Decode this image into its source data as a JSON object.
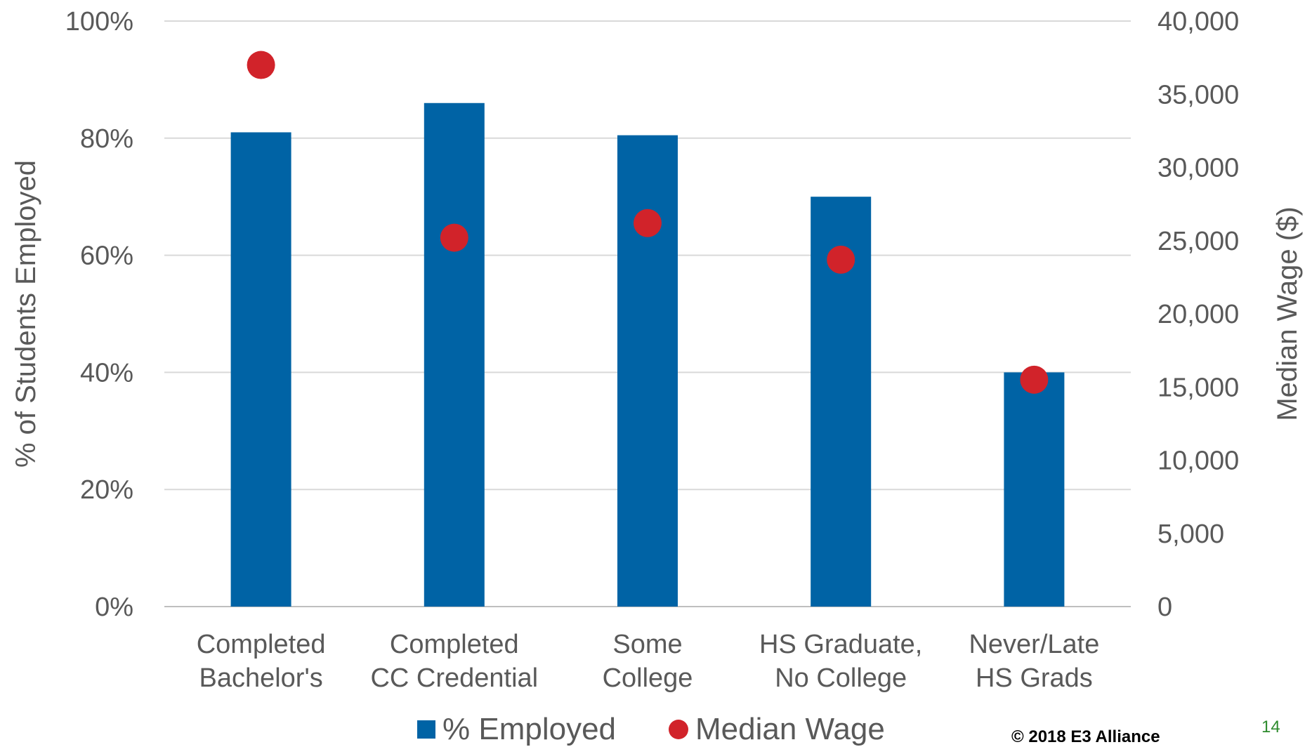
{
  "chart_data": {
    "type": "bar",
    "categories": [
      [
        "Completed",
        "Bachelor's"
      ],
      [
        "Completed",
        "CC Credential"
      ],
      [
        "Some",
        "College"
      ],
      [
        "HS Graduate,",
        "No College"
      ],
      [
        "Never/Late",
        "HS Grads"
      ]
    ],
    "series": [
      {
        "name": "% Employed",
        "type": "bar",
        "axis": "left",
        "values": [
          81,
          86,
          80.5,
          70,
          40
        ]
      },
      {
        "name": "Median Wage",
        "type": "scatter",
        "axis": "right",
        "values": [
          37000,
          25200,
          26200,
          23700,
          15500
        ]
      }
    ],
    "ylabel": "% of Students Employed",
    "ylabel_right": "Median Wage ($)",
    "ylim": [
      0,
      100
    ],
    "ylim_right": [
      0,
      40000
    ],
    "yticks": [
      "0%",
      "20%",
      "40%",
      "60%",
      "80%",
      "100%"
    ],
    "yticks_right": [
      "0",
      "5,000",
      "10,000",
      "15,000",
      "20,000",
      "25,000",
      "30,000",
      "35,000",
      "40,000"
    ],
    "grid": true,
    "legend": "bottom",
    "colors": {
      "bar": "#0063a5",
      "dot": "#d1232a",
      "grid": "#d9d9d9",
      "text": "#595959"
    }
  },
  "footer": {
    "copyright": "© 2018 E3 Alliance",
    "page_number": "14"
  }
}
